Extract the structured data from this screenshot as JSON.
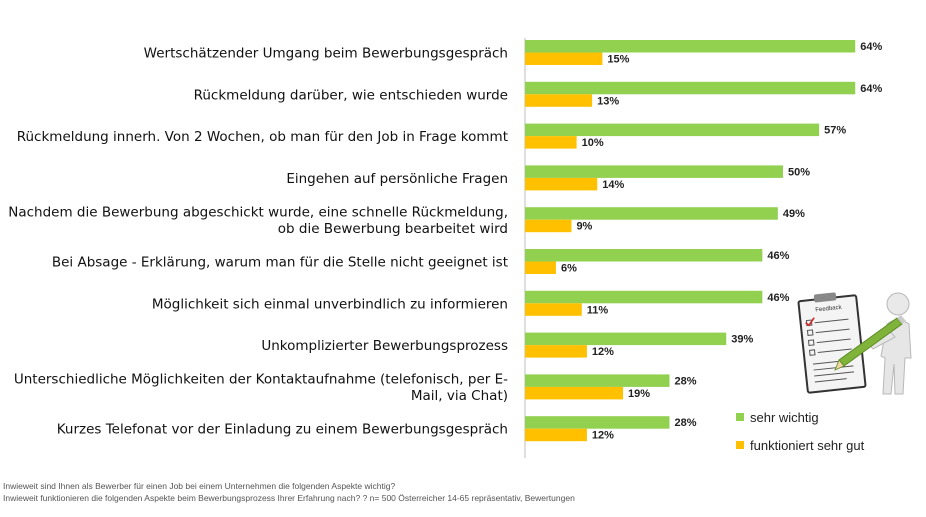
{
  "chart_data": {
    "type": "bar",
    "orientation": "horizontal",
    "categories": [
      "Wertschätzender Umgang beim Bewerbungsgespräch",
      "Rückmeldung darüber, wie entschieden wurde",
      "Rückmeldung innerh. Von 2 Wochen, ob man für den Job in Frage kommt",
      "Eingehen auf persönliche Fragen",
      "Nachdem die Bewerbung abgeschickt wurde, eine schnelle Rückmeldung, ob die Bewerbung bearbeitet wird",
      "Bei Absage - Erklärung, warum man für die Stelle nicht geeignet ist",
      "Möglichkeit sich einmal unverbindlich zu informieren",
      "Unkomplizierter Bewerbungsprozess",
      "Unterschiedliche Möglichkeiten der Kontaktaufnahme (telefonisch, per E-Mail, via Chat)",
      "Kurzes Telefonat vor der Einladung zu einem Bewerbungsgespräch"
    ],
    "category_lines": [
      [
        "Wertschätzender Umgang beim Bewerbungsgespräch"
      ],
      [
        "Rückmeldung darüber, wie entschieden wurde"
      ],
      [
        "Rückmeldung innerh. Von 2 Wochen, ob man für den Job in Frage kommt"
      ],
      [
        "Eingehen auf persönliche Fragen"
      ],
      [
        "Nachdem die Bewerbung abgeschickt wurde, eine schnelle Rückmeldung,",
        "ob die Bewerbung bearbeitet wird"
      ],
      [
        "Bei Absage - Erklärung, warum man für die Stelle nicht geeignet ist"
      ],
      [
        "Möglichkeit sich einmal unverbindlich zu informieren"
      ],
      [
        "Unkomplizierter Bewerbungsprozess"
      ],
      [
        "Unterschiedliche Möglichkeiten der Kontaktaufnahme (telefonisch, per E-",
        "Mail, via Chat)"
      ],
      [
        "Kurzes Telefonat vor der Einladung zu einem Bewerbungsgespräch"
      ]
    ],
    "series": [
      {
        "name": "sehr wichtig",
        "color": "#92d050",
        "values": [
          64,
          64,
          57,
          50,
          49,
          46,
          46,
          39,
          28,
          28
        ]
      },
      {
        "name": "funktioniert sehr gut",
        "color": "#ffc000",
        "values": [
          15,
          13,
          10,
          14,
          9,
          6,
          11,
          12,
          19,
          12
        ]
      }
    ],
    "value_format": "percent",
    "xlim": [
      0,
      64
    ],
    "grid": false,
    "legend_position": "bottom-right"
  },
  "legend": {
    "items": [
      {
        "label": "sehr wichtig",
        "color": "#92d050"
      },
      {
        "label": "funktioniert sehr gut",
        "color": "#ffc000"
      }
    ]
  },
  "footnotes": {
    "line1": "Inwieweit sind Ihnen als Bewerber für einen Job bei einem Unternehmen die folgenden Aspekte wichtig?",
    "line2": "Inwieweit funktionieren die folgenden Aspekte beim Bewerbungsprozess Ihrer Erfahrung nach? ? n= 500 Österreicher  14-65 repräsentativ, Bewertungen"
  },
  "illustration": {
    "icon": "feedback-clipboard-figure-icon",
    "clipboard_title": "Feedback"
  }
}
